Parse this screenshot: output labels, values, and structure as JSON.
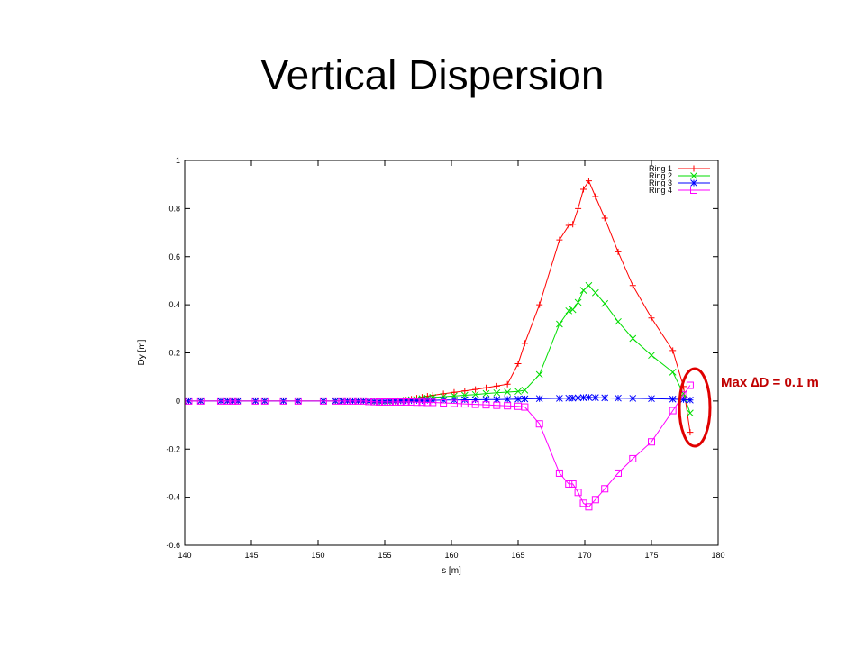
{
  "slide": {
    "title": "Vertical Dispersion"
  },
  "chart_data": {
    "type": "line",
    "xlabel": "s [m]",
    "ylabel": "Dy [m]",
    "xlim": [
      140,
      180
    ],
    "ylim": [
      -0.6,
      1
    ],
    "xticks": [
      140,
      145,
      150,
      155,
      160,
      165,
      170,
      175,
      180
    ],
    "yticks": [
      -0.6,
      -0.4,
      -0.2,
      0,
      0.2,
      0.4,
      0.6,
      0.8,
      1
    ],
    "grid": false,
    "legend_position": "top-right",
    "series": [
      {
        "name": "Ring 1",
        "color": "#ff0000",
        "marker": "plus",
        "x": [
          140.3,
          141.2,
          142.7,
          143.2,
          143.6,
          144.0,
          145.3,
          146.0,
          147.4,
          148.5,
          150.4,
          151.3,
          151.8,
          152.2,
          152.6,
          153.0,
          153.4,
          153.8,
          154.2,
          154.6,
          155.0,
          155.4,
          155.8,
          156.2,
          156.6,
          157.0,
          157.4,
          157.8,
          158.2,
          158.6,
          159.4,
          160.2,
          161.0,
          161.8,
          162.6,
          163.4,
          164.2,
          165.0,
          165.5,
          166.6,
          168.1,
          168.8,
          169.1,
          169.5,
          169.9,
          170.3,
          170.8,
          171.5,
          172.5,
          173.6,
          175.0,
          176.6,
          177.4,
          177.9
        ],
        "y": [
          0,
          0,
          0,
          0,
          0,
          0,
          0,
          0,
          0,
          0,
          0,
          0,
          0,
          0,
          0,
          0,
          0,
          -0.002,
          -0.004,
          -0.005,
          -0.005,
          -0.004,
          -0.002,
          0.001,
          0.004,
          0.008,
          0.012,
          0.016,
          0.02,
          0.024,
          0.03,
          0.036,
          0.042,
          0.048,
          0.055,
          0.062,
          0.07,
          0.155,
          0.24,
          0.4,
          0.67,
          0.73,
          0.735,
          0.8,
          0.88,
          0.915,
          0.85,
          0.76,
          0.62,
          0.48,
          0.345,
          0.21,
          0.06,
          -0.13
        ]
      },
      {
        "name": "Ring 2",
        "color": "#00dd00",
        "marker": "cross",
        "x": [
          140.3,
          141.2,
          142.7,
          143.2,
          143.6,
          144.0,
          145.3,
          146.0,
          147.4,
          148.5,
          150.4,
          151.3,
          151.8,
          152.2,
          152.6,
          153.0,
          153.4,
          153.8,
          154.2,
          154.6,
          155.0,
          155.4,
          155.8,
          156.2,
          156.6,
          157.0,
          157.4,
          157.8,
          158.2,
          158.6,
          159.4,
          160.2,
          161.0,
          161.8,
          162.6,
          163.4,
          164.2,
          165.0,
          165.5,
          166.6,
          168.1,
          168.8,
          169.1,
          169.5,
          169.9,
          170.3,
          170.8,
          171.5,
          172.5,
          173.6,
          175.0,
          176.6,
          177.4,
          177.9
        ],
        "y": [
          0,
          0,
          0,
          0,
          0,
          0,
          0,
          0,
          0,
          0,
          0,
          0,
          0,
          0,
          0,
          0,
          0,
          -0.002,
          -0.003,
          -0.004,
          -0.004,
          -0.003,
          -0.001,
          0.001,
          0.003,
          0.005,
          0.008,
          0.01,
          0.012,
          0.015,
          0.018,
          0.021,
          0.024,
          0.027,
          0.031,
          0.034,
          0.037,
          0.04,
          0.045,
          0.11,
          0.32,
          0.375,
          0.38,
          0.41,
          0.46,
          0.48,
          0.45,
          0.405,
          0.33,
          0.26,
          0.19,
          0.12,
          0.03,
          -0.05
        ]
      },
      {
        "name": "Ring 3",
        "color": "#0000ff",
        "marker": "star",
        "x": [
          140.3,
          141.2,
          142.7,
          143.2,
          143.6,
          144.0,
          145.3,
          146.0,
          147.4,
          148.5,
          150.4,
          151.3,
          151.8,
          152.2,
          152.6,
          153.0,
          153.4,
          153.8,
          154.2,
          154.6,
          155.0,
          155.4,
          155.8,
          156.2,
          156.6,
          157.0,
          157.4,
          157.8,
          158.2,
          158.6,
          159.4,
          160.2,
          161.0,
          161.8,
          162.6,
          163.4,
          164.2,
          165.0,
          165.5,
          166.6,
          168.1,
          168.8,
          169.1,
          169.5,
          169.9,
          170.3,
          170.8,
          171.5,
          172.5,
          173.6,
          175.0,
          176.6,
          177.4,
          177.9
        ],
        "y": [
          0,
          0,
          0,
          0,
          0,
          0,
          0,
          0,
          0,
          0,
          0,
          0,
          0,
          0,
          0,
          0,
          0,
          -0.001,
          -0.002,
          -0.002,
          -0.002,
          -0.001,
          0,
          0,
          0.001,
          0.001,
          0.002,
          0.002,
          0.003,
          0.003,
          0.004,
          0.004,
          0.005,
          0.005,
          0.006,
          0.006,
          0.007,
          0.008,
          0.009,
          0.01,
          0.011,
          0.012,
          0.012,
          0.013,
          0.014,
          0.015,
          0.014,
          0.013,
          0.012,
          0.011,
          0.01,
          0.008,
          0.006,
          0.004
        ]
      },
      {
        "name": "Ring 4",
        "color": "#ff00ff",
        "marker": "square",
        "x": [
          140.3,
          141.2,
          142.7,
          143.2,
          143.6,
          144.0,
          145.3,
          146.0,
          147.4,
          148.5,
          150.4,
          151.3,
          151.8,
          152.2,
          152.6,
          153.0,
          153.4,
          153.8,
          154.2,
          154.6,
          155.0,
          155.4,
          155.8,
          156.2,
          156.6,
          157.0,
          157.4,
          157.8,
          158.2,
          158.6,
          159.4,
          160.2,
          161.0,
          161.8,
          162.6,
          163.4,
          164.2,
          165.0,
          165.5,
          166.6,
          168.1,
          168.8,
          169.1,
          169.5,
          169.9,
          170.3,
          170.8,
          171.5,
          172.5,
          173.6,
          175.0,
          176.6,
          177.4,
          177.9
        ],
        "y": [
          0,
          0,
          0,
          0,
          0,
          0,
          0,
          0,
          0,
          0,
          0,
          0,
          0,
          0,
          0,
          0,
          0,
          -0.002,
          -0.003,
          -0.004,
          -0.004,
          -0.004,
          -0.004,
          -0.004,
          -0.004,
          -0.004,
          -0.005,
          -0.005,
          -0.006,
          -0.006,
          -0.008,
          -0.01,
          -0.012,
          -0.014,
          -0.016,
          -0.018,
          -0.02,
          -0.022,
          -0.025,
          -0.095,
          -0.3,
          -0.345,
          -0.345,
          -0.38,
          -0.425,
          -0.44,
          -0.41,
          -0.365,
          -0.3,
          -0.24,
          -0.17,
          -0.04,
          0.025,
          0.065
        ]
      }
    ]
  },
  "annotation": {
    "text": "Max ∆D = 0.1 m",
    "color": "#c00000"
  }
}
